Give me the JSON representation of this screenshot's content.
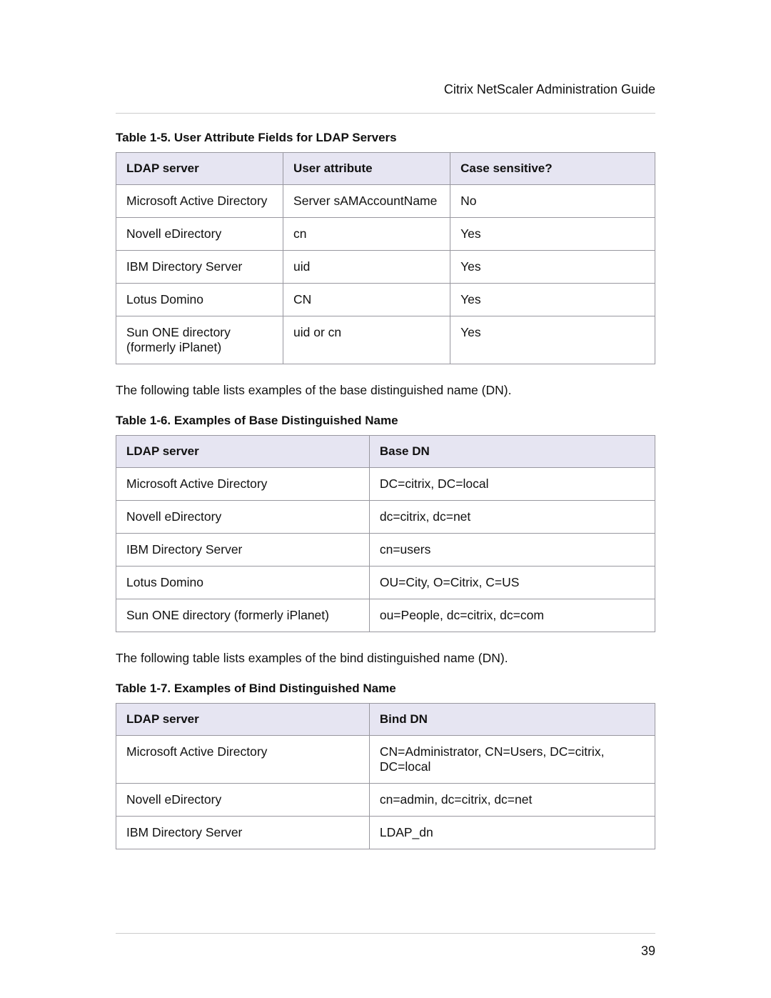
{
  "header": {
    "title": "Citrix NetScaler Administration Guide"
  },
  "footer": {
    "page_number": "39"
  },
  "colors": {
    "header_bg": "#e6e5f2",
    "border": "#98979f",
    "rule": "#cccccc",
    "text": "#111111",
    "page_bg": "#ffffff"
  },
  "typography": {
    "body_fontsize_pt": 13,
    "caption_fontsize_pt": 12.5,
    "header_fontsize_pt": 13
  },
  "table1": {
    "caption": "Table 1-5.  User Attribute Fields for LDAP Servers",
    "type": "table",
    "columns": [
      "LDAP server",
      "User attribute",
      "Case sensitive?"
    ],
    "rows": [
      [
        "Microsoft Active Directory",
        "Server sAMAccountName",
        "No"
      ],
      [
        "Novell eDirectory",
        "cn",
        "Yes"
      ],
      [
        "IBM Directory Server",
        "uid",
        "Yes"
      ],
      [
        "Lotus Domino",
        "CN",
        "Yes"
      ],
      [
        "Sun ONE directory (formerly iPlanet)",
        "uid or cn",
        "Yes"
      ]
    ]
  },
  "para1": "The following table lists examples of the base distinguished name (DN).",
  "table2": {
    "caption": "Table 1-6. Examples of Base Distinguished Name",
    "type": "table",
    "columns": [
      "LDAP server",
      "Base DN"
    ],
    "rows": [
      [
        "Microsoft Active Directory",
        "DC=citrix, DC=local"
      ],
      [
        "Novell eDirectory",
        "dc=citrix, dc=net"
      ],
      [
        "IBM Directory Server",
        "cn=users"
      ],
      [
        "Lotus Domino",
        "OU=City, O=Citrix, C=US"
      ],
      [
        "Sun ONE directory (formerly iPlanet)",
        "ou=People, dc=citrix, dc=com"
      ]
    ]
  },
  "para2": "The following table lists examples of the bind distinguished name (DN).",
  "table3": {
    "caption": "Table 1-7. Examples of Bind Distinguished Name",
    "type": "table",
    "columns": [
      "LDAP server",
      "Bind DN"
    ],
    "rows": [
      [
        "Microsoft Active Directory",
        "CN=Administrator, CN=Users, DC=citrix, DC=local"
      ],
      [
        "Novell eDirectory",
        "cn=admin, dc=citrix, dc=net"
      ],
      [
        "IBM Directory Server",
        "LDAP_dn"
      ]
    ]
  }
}
